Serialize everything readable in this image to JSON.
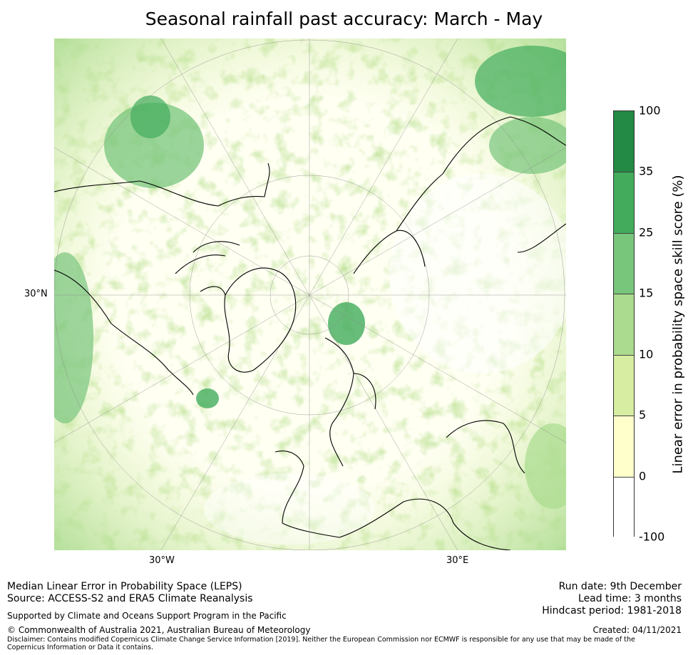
{
  "title": "Seasonal rainfall past accuracy: March - May",
  "map": {
    "projection": "north polar stereographic",
    "lat_labels": [
      "30°N"
    ],
    "lon_labels": [
      "30°W",
      "30°E"
    ]
  },
  "colorbar": {
    "title": "Linear error in probability space skill score (%)",
    "ticks": [
      "100",
      "35",
      "25",
      "15",
      "10",
      "5",
      "0",
      "-100"
    ],
    "bins": [
      {
        "range": [
          35,
          100
        ],
        "color": "#228a45"
      },
      {
        "range": [
          25,
          35
        ],
        "color": "#42ac5c"
      },
      {
        "range": [
          15,
          25
        ],
        "color": "#78c57c"
      },
      {
        "range": [
          10,
          15
        ],
        "color": "#aadb8e"
      },
      {
        "range": [
          5,
          10
        ],
        "color": "#d7eda1"
      },
      {
        "range": [
          0,
          5
        ],
        "color": "#ffffcb"
      },
      {
        "range": [
          -100,
          0
        ],
        "color": "#ffffff"
      }
    ]
  },
  "footer": {
    "left_line1": "Median Linear Error in Probability Space (LEPS)",
    "left_line2": "Source: ACCESS-S2 and ERA5 Climate Reanalysis",
    "support": "Supported by Climate and Oceans Support Program in the Pacific",
    "copyright": "© Commonwealth of Australia 2021, Australian Bureau of Meteorology",
    "disclaimer": "Disclaimer: Contains modified Copernicus Climate Change Service Information [2019]. Neither the European Commission nor ECMWF is responsible for any use that may be made of the Copernicus Information or Data it contains.",
    "run_date": "Run date: 9th December",
    "lead_time": "Lead time: 3 months",
    "hindcast": "Hindcast period: 1981-2018",
    "created": "Created: 04/11/2021"
  }
}
